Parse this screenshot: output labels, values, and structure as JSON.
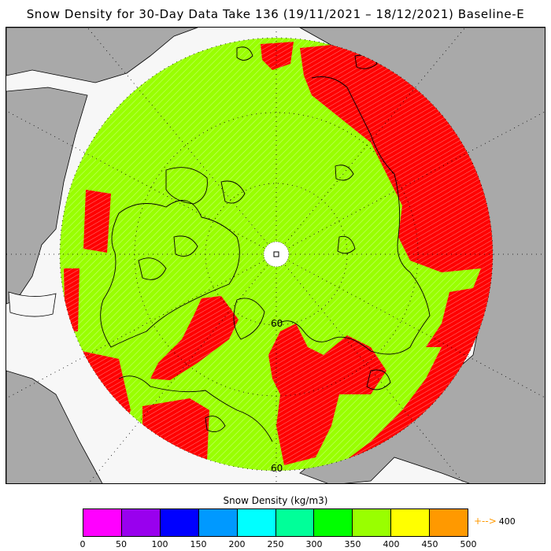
{
  "title": "Snow Density for 30-Day Data Take 136 (19/11/2021 – 18/12/2021) Baseline-E",
  "map": {
    "projection": "north polar stereographic",
    "latitude_labels": [
      "60",
      "60"
    ],
    "land_color": "#a9a9a9",
    "ocean_color": "#f7f7f7",
    "no_data_color": "#ffffff",
    "dominant_class_color": "#99ff00",
    "high_class_color": "#ff0000"
  },
  "colorbar": {
    "title": "Snow Density (kg/m3)",
    "ticks": [
      "0",
      "50",
      "100",
      "150",
      "200",
      "250",
      "300",
      "350",
      "400",
      "450",
      "500"
    ],
    "colors": [
      "#ff00ff",
      "#9900ee",
      "#0000ff",
      "#0099ff",
      "#00ffff",
      "#00ff99",
      "#00ff00",
      "#99ff00",
      "#ffff00",
      "#ff9900"
    ],
    "overflow_label": "400",
    "overflow_color": "#ff9900"
  }
}
